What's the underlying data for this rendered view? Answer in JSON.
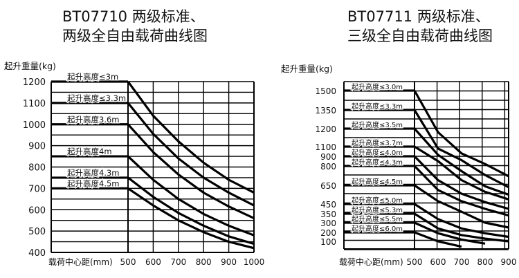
{
  "chart_data": [
    {
      "type": "line",
      "title_lines": [
        "BT07710 两级标准、",
        "两级全自由载荷曲线图"
      ],
      "ylabel": "起升重量(kg)",
      "xlabel": "载荷中心距(mm)",
      "x_ticks": [
        500,
        600,
        700,
        800,
        900,
        1000
      ],
      "y_ticks": [
        1200,
        1100,
        1000,
        900,
        800,
        700,
        600,
        500,
        400
      ],
      "xlim": [
        500,
        1000
      ],
      "ylim": [
        400,
        1200
      ],
      "grid": true,
      "series": [
        {
          "name": "起升高度≤3m",
          "x": [
            500,
            600,
            700,
            800,
            900,
            1000
          ],
          "y": [
            1200,
            1040,
            920,
            820,
            740,
            680
          ]
        },
        {
          "name": "起升高度≤3.3m",
          "x": [
            500,
            600,
            700,
            800,
            900,
            1000
          ],
          "y": [
            1100,
            955,
            840,
            750,
            680,
            620
          ]
        },
        {
          "name": "起升高度3.6m",
          "x": [
            500,
            600,
            700,
            800,
            900,
            1000
          ],
          "y": [
            1000,
            870,
            765,
            680,
            615,
            560
          ]
        },
        {
          "name": "起升高度4m",
          "x": [
            500,
            600,
            700,
            800,
            900,
            1000
          ],
          "y": [
            850,
            740,
            650,
            580,
            525,
            480
          ]
        },
        {
          "name": "起升高度4.3m",
          "x": [
            500,
            600,
            700,
            800,
            900,
            1000
          ],
          "y": [
            750,
            660,
            585,
            525,
            475,
            440
          ]
        },
        {
          "name": "起升高度4.5m",
          "x": [
            500,
            600,
            700,
            800,
            900,
            1000
          ],
          "y": [
            700,
            620,
            550,
            495,
            450,
            420
          ]
        }
      ]
    },
    {
      "type": "line",
      "title_lines": [
        "BT07711 两级标准、",
        "三级全自由载荷曲线图"
      ],
      "ylabel": "起升重量(kg)",
      "xlabel": "载荷中心距(mm)",
      "x_ticks": [
        500,
        600,
        700,
        800,
        900
      ],
      "y_ticks": [
        1500,
        1350,
        1200,
        1100,
        900,
        800,
        650,
        450,
        350,
        300,
        200,
        100
      ],
      "xlim": [
        500,
        900
      ],
      "ylim": [
        0,
        1600
      ],
      "grid": true,
      "series": [
        {
          "name": "起升高度≤3.0m",
          "x": [
            500,
            600,
            700,
            800,
            900
          ],
          "y": [
            1500,
            1180,
            960,
            820,
            720
          ]
        },
        {
          "name": "起升高度≤3.3m",
          "x": [
            500,
            600,
            700,
            800,
            900
          ],
          "y": [
            1350,
            1060,
            860,
            730,
            630
          ]
        },
        {
          "name": "起升高度≤3.5m",
          "x": [
            500,
            600,
            700,
            800,
            900
          ],
          "y": [
            1200,
            930,
            760,
            640,
            550
          ]
        },
        {
          "name": "起升高度≤3.7m",
          "x": [
            500,
            600,
            700,
            800,
            900
          ],
          "y": [
            1100,
            850,
            690,
            580,
            500
          ]
        },
        {
          "name": "起升高度≤4.0m",
          "x": [
            500,
            600,
            700,
            800,
            900
          ],
          "y": [
            900,
            690,
            560,
            470,
            400
          ]
        },
        {
          "name": "起升高度≤4.3m",
          "x": [
            500,
            600,
            700,
            800,
            900
          ],
          "y": [
            800,
            600,
            480,
            400,
            340
          ]
        },
        {
          "name": "起升高度≤4.5m",
          "x": [
            500,
            600,
            700,
            800,
            900
          ],
          "y": [
            650,
            480,
            370,
            300,
            250
          ]
        },
        {
          "name": "起升高度≤5.0m",
          "x": [
            500,
            600,
            700,
            800,
            900
          ],
          "y": [
            450,
            320,
            240,
            190,
            150
          ]
        },
        {
          "name": "起升高度≤5.3m",
          "x": [
            500,
            600,
            700,
            800,
            900
          ],
          "y": [
            350,
            240,
            170,
            130,
            100
          ]
        },
        {
          "name": "起升高度≤5.5m",
          "x": [
            500,
            600,
            700,
            800
          ],
          "y": [
            300,
            190,
            120,
            70
          ]
        },
        {
          "name": "起升高度≤6.0m",
          "x": [
            500,
            600,
            700
          ],
          "y": [
            200,
            100,
            30
          ]
        }
      ]
    }
  ]
}
